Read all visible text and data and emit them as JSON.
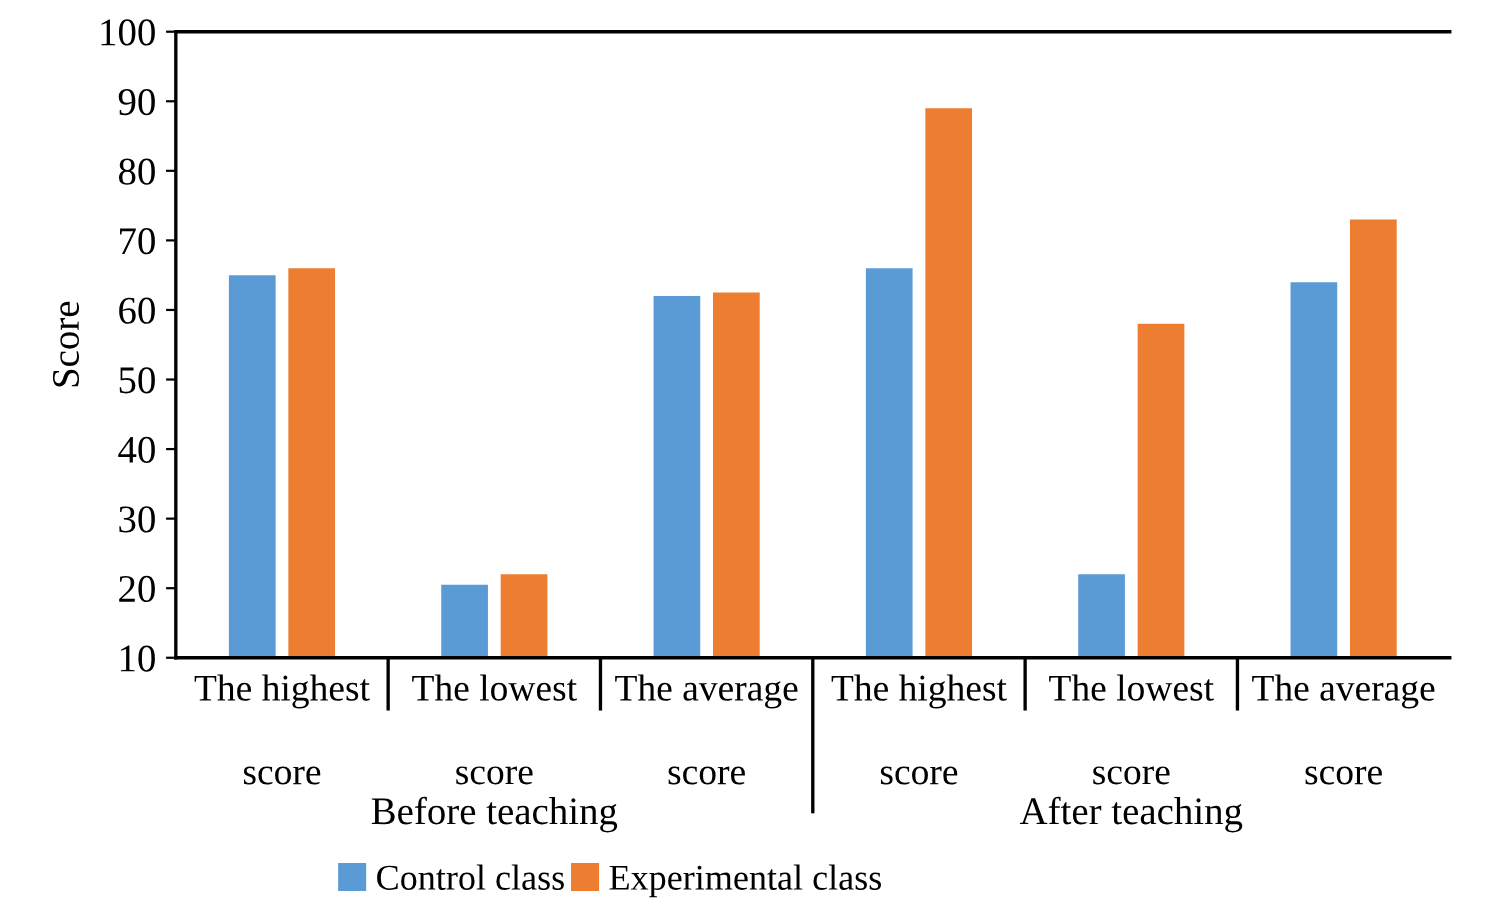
{
  "chart_data": {
    "type": "bar",
    "ylabel": "Score",
    "categories": [
      "The highest score",
      "The lowest score",
      "The average score",
      "The highest score",
      "The lowest score",
      "The average score"
    ],
    "series": [
      {
        "name": "Control class",
        "color": "#5b9bd5",
        "values": [
          65,
          20.5,
          62,
          66,
          22,
          64
        ]
      },
      {
        "name": "Experimental class",
        "color": "#ed7d31",
        "values": [
          66,
          22,
          62.5,
          89,
          58,
          73
        ]
      }
    ],
    "annotations": [
      "Before teaching",
      "After teaching"
    ],
    "ylim": [
      10,
      100
    ],
    "yticks": [
      10,
      20,
      30,
      40,
      50,
      60,
      70,
      80,
      90,
      100
    ],
    "grid": false,
    "legend": "bottom"
  }
}
